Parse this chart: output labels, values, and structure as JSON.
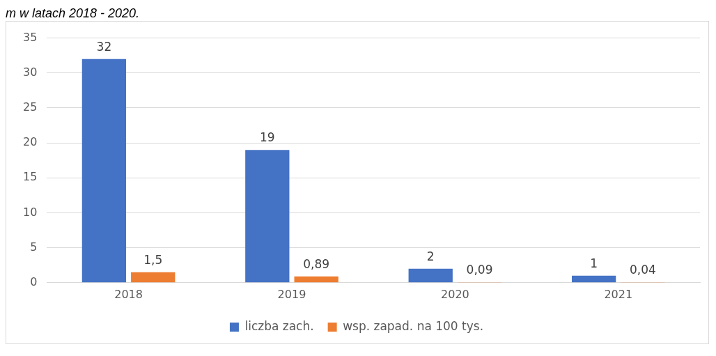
{
  "chart_data": {
    "type": "bar",
    "annotations": [
      "m w latach 2018 - 2020."
    ],
    "categories": [
      "2018",
      "2019",
      "2020",
      "2021"
    ],
    "series": [
      {
        "name": "liczba zach.",
        "color": "#4472c4",
        "values": [
          32,
          19,
          2,
          1
        ],
        "value_labels": [
          "32",
          "19",
          "2",
          "1"
        ]
      },
      {
        "name": "wsp. zapad. na 100 tys.",
        "color": "#ed7d31",
        "values": [
          1.5,
          0.89,
          0.09,
          0.04
        ],
        "value_labels": [
          "1,5",
          "0,89",
          "0,09",
          "0,04"
        ]
      }
    ],
    "ylim": [
      0,
      35
    ],
    "yticks": [
      0,
      5,
      10,
      15,
      20,
      25,
      30,
      35
    ],
    "grid": "y",
    "legend": "bottom"
  }
}
